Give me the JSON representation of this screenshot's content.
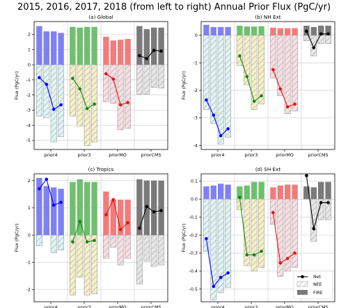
{
  "suptitle": "2015, 2016, 2017, 2018 (from left to right) Annual Prior Flux (PgC/yr)",
  "ylabel": "Flux (PgC/yr)",
  "categories": [
    "prior4",
    "prior3",
    "priorMO",
    "priorCMS"
  ],
  "legend": {
    "position": "lower-right",
    "entries": [
      "Net",
      "NEE",
      "FIRE"
    ]
  },
  "colors": {
    "prior4": "#8080f5",
    "prior3": "#6fbf6f",
    "priorMO": "#f27c7c",
    "priorCMS": "#7a7a7a",
    "prior4_nee": "#dff4f5",
    "prior3_nee": "#f6f0c5",
    "priorMO_nee": "#f8dfe3",
    "priorCMS_nee": "#e6e6e6",
    "net_prior4": "#0000ff",
    "net_prior3": "#138613",
    "net_priorMO": "#e81010",
    "net_priorCMS": "#000000",
    "grid": "#c8c8c8"
  },
  "chart_data": [
    {
      "type": "bar",
      "title": "(a) Global",
      "ylim": [
        -5.6,
        2.85
      ],
      "yticks": [
        -5,
        -4,
        -3,
        -2,
        -1,
        0,
        1,
        2
      ],
      "grid": true,
      "series": [
        {
          "category": "prior4",
          "fire": [
            2.55,
            2.2,
            2.2,
            2.1
          ],
          "nee": [
            -3.4,
            -3.5,
            -5.1,
            -4.75
          ],
          "net": [
            -0.85,
            -1.3,
            -2.95,
            -2.65
          ]
        },
        {
          "category": "prior3",
          "fire": [
            2.5,
            2.45,
            2.5,
            2.5
          ],
          "nee": [
            -3.4,
            -4.05,
            -5.35,
            -5.1
          ],
          "net": [
            -0.9,
            -1.6,
            -2.9,
            -2.6
          ]
        },
        {
          "category": "priorMO",
          "fire": [
            1.85,
            1.6,
            1.65,
            1.7
          ],
          "nee": [
            -2.45,
            -2.55,
            -4.3,
            -4.2
          ],
          "net": [
            -0.6,
            -0.95,
            -2.65,
            -2.5
          ]
        },
        {
          "category": "priorCMS",
          "fire": [
            2.55,
            2.35,
            2.45,
            2.45
          ],
          "nee": [
            -1.95,
            -1.95,
            -1.5,
            -1.55
          ],
          "net": [
            0.6,
            0.4,
            0.95,
            0.9
          ]
        }
      ]
    },
    {
      "type": "bar",
      "title": "(b) NH Ext",
      "ylim": [
        -4.15,
        0.5
      ],
      "yticks": [
        -4,
        -3,
        -2,
        -1,
        0
      ],
      "grid": true,
      "series": [
        {
          "category": "prior4",
          "fire": [
            0.38,
            0.3,
            0.3,
            0.3
          ],
          "nee": [
            -2.7,
            -3.2,
            -3.95,
            -3.7
          ],
          "net": [
            -2.35,
            -2.9,
            -3.65,
            -3.4
          ]
        },
        {
          "category": "prior3",
          "fire": [
            0.35,
            0.32,
            0.32,
            0.33
          ],
          "nee": [
            -1.1,
            -1.8,
            -2.7,
            -2.5
          ],
          "net": [
            -0.75,
            -1.5,
            -2.4,
            -2.2
          ]
        },
        {
          "category": "priorMO",
          "fire": [
            0.28,
            0.26,
            0.26,
            0.26
          ],
          "nee": [
            -1.55,
            -2.2,
            -2.85,
            -2.75
          ],
          "net": [
            -1.25,
            -1.95,
            -2.6,
            -2.5
          ]
        },
        {
          "category": "priorCMS",
          "fire": [
            0.35,
            0.3,
            0.35,
            0.35
          ],
          "nee": [
            -0.2,
            -0.75,
            -0.3,
            -0.3
          ],
          "net": [
            0.15,
            -0.45,
            0.05,
            0.05
          ]
        }
      ]
    },
    {
      "type": "bar",
      "title": "(c) Tropics",
      "ylim": [
        -2.45,
        2.25
      ],
      "yticks": [
        -2,
        -1,
        0,
        1,
        2
      ],
      "grid": true,
      "series": [
        {
          "category": "prior4",
          "fire": [
            2.1,
            1.8,
            1.75,
            1.7
          ],
          "nee": [
            -0.4,
            0.25,
            -0.65,
            -0.55
          ],
          "net": [
            1.7,
            2.05,
            1.1,
            1.2
          ]
        },
        {
          "category": "prior3",
          "fire": [
            1.95,
            2.05,
            1.95,
            1.95
          ],
          "nee": [
            -2.2,
            -1.55,
            -2.2,
            -2.15
          ],
          "net": [
            -0.25,
            0.5,
            -0.25,
            -0.2
          ]
        },
        {
          "category": "priorMO",
          "fire": [
            1.6,
            1.3,
            1.3,
            1.3
          ],
          "nee": [
            -0.85,
            -0.45,
            -1.1,
            -0.85
          ],
          "net": [
            0.75,
            1.3,
            0.2,
            0.45
          ]
        },
        {
          "category": "priorCMS",
          "fire": [
            2.05,
            2.0,
            2.0,
            2.0
          ],
          "nee": [
            -1.8,
            -0.95,
            -1.15,
            -1.1
          ],
          "net": [
            0.25,
            1.05,
            0.85,
            0.9
          ]
        }
      ]
    },
    {
      "type": "bar",
      "title": "(d) SH Ext",
      "ylim": [
        -0.57,
        0.14
      ],
      "yticks": [
        -0.5,
        -0.4,
        -0.3,
        -0.2,
        -0.1,
        0.0,
        0.1
      ],
      "grid": true,
      "series": [
        {
          "category": "prior4",
          "fire": [
            0.07,
            0.075,
            0.085,
            0.08
          ],
          "nee": [
            -0.29,
            -0.56,
            -0.52,
            -0.49
          ],
          "net": [
            -0.22,
            -0.485,
            -0.435,
            -0.41
          ]
        },
        {
          "category": "prior3",
          "fire": [
            0.07,
            0.075,
            0.095,
            0.095
          ],
          "nee": [
            -0.06,
            -0.37,
            -0.4,
            -0.38
          ],
          "net": [
            0.01,
            -0.31,
            -0.31,
            -0.29
          ]
        },
        {
          "category": "priorMO",
          "fire": [
            0.065,
            0.075,
            0.08,
            0.08
          ],
          "nee": [
            -0.14,
            -0.43,
            -0.4,
            -0.38
          ],
          "net": [
            -0.075,
            -0.355,
            -0.33,
            -0.3
          ]
        },
        {
          "category": "priorCMS",
          "fire": [
            0.07,
            0.065,
            0.095,
            0.095
          ],
          "nee": [
            0.06,
            -0.235,
            -0.115,
            -0.115
          ],
          "net": [
            0.13,
            -0.165,
            -0.02,
            -0.02
          ]
        }
      ]
    }
  ]
}
